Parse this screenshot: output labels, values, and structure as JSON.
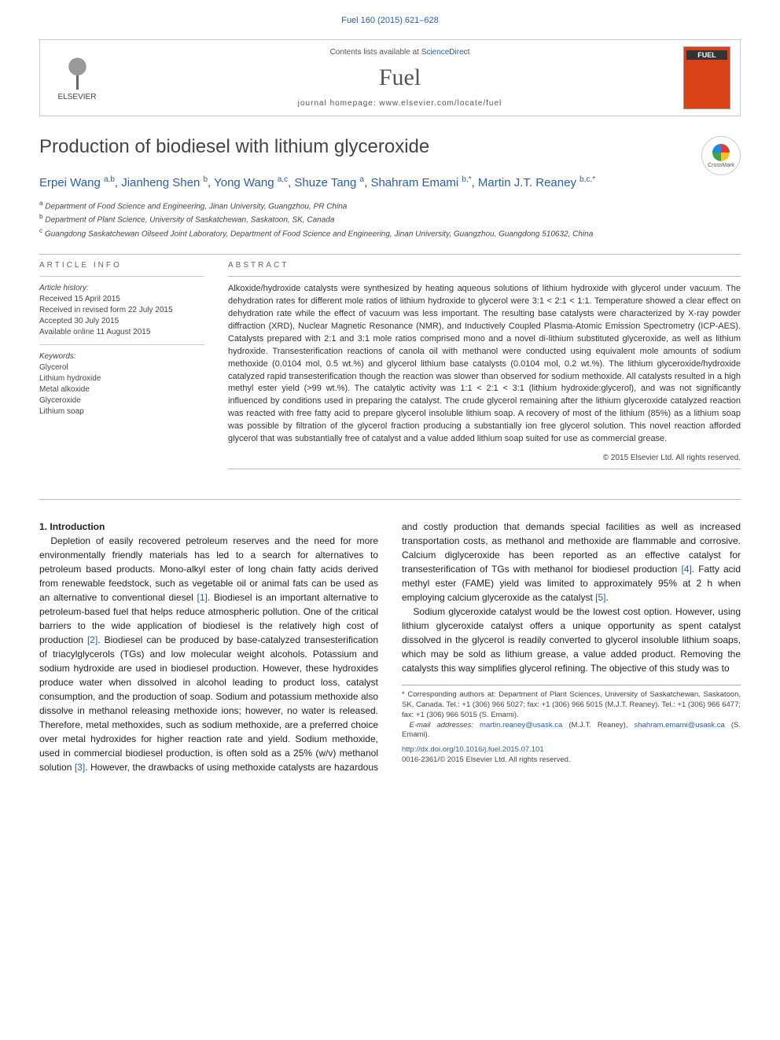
{
  "journal_ref": "Fuel 160 (2015) 621–628",
  "header": {
    "contents_prefix": "Contents lists available at ",
    "contents_link": "ScienceDirect",
    "journal_name": "Fuel",
    "homepage_prefix": "journal homepage: ",
    "homepage_url": "www.elsevier.com/locate/fuel",
    "publisher": "ELSEVIER",
    "cover_title": "FUEL"
  },
  "crossmark": "CrossMark",
  "title": "Production of biodiesel with lithium glyceroxide",
  "authors_html": "Erpei Wang <sup>a,b</sup>, Jianheng Shen <sup>b</sup>, Yong Wang <sup>a,c</sup>, Shuze Tang <sup>a</sup>, Shahram Emami <sup>b,*</sup>, Martin J.T. Reaney <sup>b,c,*</sup>",
  "affiliations": [
    {
      "sup": "a",
      "text": "Department of Food Science and Engineering, Jinan University, Guangzhou, PR China"
    },
    {
      "sup": "b",
      "text": "Department of Plant Science, University of Saskatchewan, Saskatoon, SK, Canada"
    },
    {
      "sup": "c",
      "text": "Guangdong Saskatchewan Oilseed Joint Laboratory, Department of Food Science and Engineering, Jinan University, Guangzhou, Guangdong 510632, China"
    }
  ],
  "info": {
    "heading": "ARTICLE INFO",
    "history_label": "Article history:",
    "history": [
      "Received 15 April 2015",
      "Received in revised form 22 July 2015",
      "Accepted 30 July 2015",
      "Available online 11 August 2015"
    ],
    "keywords_label": "Keywords:",
    "keywords": [
      "Glycerol",
      "Lithium hydroxide",
      "Metal alkoxide",
      "Glyceroxide",
      "Lithium soap"
    ]
  },
  "abstract": {
    "heading": "ABSTRACT",
    "text": "Alkoxide/hydroxide catalysts were synthesized by heating aqueous solutions of lithium hydroxide with glycerol under vacuum. The dehydration rates for different mole ratios of lithium hydroxide to glycerol were 3:1 < 2:1 < 1:1. Temperature showed a clear effect on dehydration rate while the effect of vacuum was less important. The resulting base catalysts were characterized by X-ray powder diffraction (XRD), Nuclear Magnetic Resonance (NMR), and Inductively Coupled Plasma-Atomic Emission Spectrometry (ICP-AES). Catalysts prepared with 2:1 and 3:1 mole ratios comprised mono and a novel di-lithium substituted glyceroxide, as well as lithium hydroxide. Transesterification reactions of canola oil with methanol were conducted using equivalent mole amounts of sodium methoxide (0.0104 mol, 0.5 wt.%) and glycerol lithium base catalysts (0.0104 mol, 0.2 wt.%). The lithium glyceroxide/hydroxide catalyzed rapid transesterification though the reaction was slower than observed for sodium methoxide. All catalysts resulted in a high methyl ester yield (>99 wt.%). The catalytic activity was 1:1 < 2:1 < 3:1 (lithium hydroxide:glycerol), and was not significantly influenced by conditions used in preparing the catalyst. The crude glycerol remaining after the lithium glyceroxide catalyzed reaction was reacted with free fatty acid to prepare glycerol insoluble lithium soap. A recovery of most of the lithium (85%) as a lithium soap was possible by filtration of the glycerol fraction producing a substantially ion free glycerol solution. This novel reaction afforded glycerol that was substantially free of catalyst and a value added lithium soap suited for use as commercial grease.",
    "copyright": "© 2015 Elsevier Ltd. All rights reserved."
  },
  "body": {
    "section_number": "1.",
    "section_title": "Introduction",
    "p1_a": "Depletion of easily recovered petroleum reserves and the need for more environmentally friendly materials has led to a search for alternatives to petroleum based products. Mono-alkyl ester of long chain fatty acids derived from renewable feedstock, such as vegetable oil or animal fats can be used as an alternative to conventional diesel ",
    "ref1": "[1]",
    "p1_b": ". Biodiesel is an important alternative to petroleum-based fuel that helps reduce atmospheric pollution. One of the critical barriers to the wide application of biodiesel is the relatively high cost of production ",
    "ref2": "[2]",
    "p1_c": ". Biodiesel can be produced by base-catalyzed transesterification of triacylglycerols (TGs) and low molecular weight alcohols. Potassium and sodium hydroxide are used in biodiesel production. However, these hydroxides produce water when dissolved in alcohol leading to ",
    "p1_d": "product loss, catalyst consumption, and the production of soap. Sodium and potassium methoxide also dissolve in methanol releasing methoxide ions; however, no water is released. Therefore, metal methoxides, such as sodium methoxide, are a preferred choice over metal hydroxides for higher reaction rate and yield. Sodium methoxide, used in commercial biodiesel production, is often sold as a 25% (w/v) methanol solution ",
    "ref3": "[3]",
    "p1_e": ". However, the drawbacks of using methoxide catalysts are hazardous and costly production that demands special facilities as well as increased transportation costs, as methanol and methoxide are flammable and corrosive. Calcium diglyceroxide has been reported as an effective catalyst for transesterification of TGs with methanol for biodiesel production ",
    "ref4": "[4]",
    "p1_f": ". Fatty acid methyl ester (FAME) yield was limited to approximately 95% at 2 h when employing calcium glyceroxide as the catalyst ",
    "ref5": "[5]",
    "p1_g": ".",
    "p2": "Sodium glyceroxide catalyst would be the lowest cost option. However, using lithium glyceroxide catalyst offers a unique opportunity as spent catalyst dissolved in the glycerol is readily converted to glycerol insoluble lithium soaps, which may be sold as lithium grease, a value added product. Removing the catalysts this way simplifies glycerol refining. The objective of this study was to"
  },
  "footnote": {
    "corresponding": "* Corresponding authors at: Department of Plant Sciences, University of Saskatchewan, Saskatoon, SK, Canada. Tel.: +1 (306) 966 5027; fax: +1 (306) 966 5015 (M.J.T. Reaney). Tel.: +1 (306) 966 6477; fax: +1 (306) 966 5015 (S. Emami).",
    "email_label": "E-mail addresses: ",
    "email1": "martin.reaney@usask.ca",
    "email1_name": " (M.J.T. Reaney), ",
    "email2": "shahram.emami@usask.ca",
    "email2_name": " (S. Emami)."
  },
  "doi": {
    "url": "http://dx.doi.org/10.1016/j.fuel.2015.07.101",
    "issn_copyright": "0016-2361/© 2015 Elsevier Ltd. All rights reserved."
  },
  "colors": {
    "link": "#2e5f9e",
    "text": "#1a1a1a",
    "muted": "#555",
    "cover_bg": "#d84315"
  }
}
